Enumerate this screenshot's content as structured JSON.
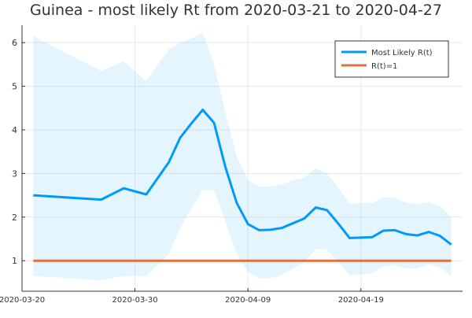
{
  "chart_data": {
    "type": "line",
    "title": "Guinea - most likely Rt from 2020-03-21 to 2020-04-27",
    "xlabel": "",
    "ylabel": "",
    "x_ticks": [
      "2020-03-20",
      "2020-03-30",
      "2020-04-09",
      "2020-04-19"
    ],
    "y_ticks": [
      1,
      2,
      3,
      4,
      5,
      6
    ],
    "xlim": [
      "2020-03-20",
      "2020-04-28"
    ],
    "ylim": [
      0.3,
      6.4
    ],
    "grid": true,
    "legend_position": "top-right",
    "x": [
      "2020-03-21",
      "2020-03-27",
      "2020-03-29",
      "2020-03-31",
      "2020-04-02",
      "2020-04-03",
      "2020-04-04",
      "2020-04-05",
      "2020-04-06",
      "2020-04-07",
      "2020-04-08",
      "2020-04-09",
      "2020-04-10",
      "2020-04-11",
      "2020-04-12",
      "2020-04-13",
      "2020-04-14",
      "2020-04-15",
      "2020-04-16",
      "2020-04-17",
      "2020-04-18",
      "2020-04-19",
      "2020-04-20",
      "2020-04-21",
      "2020-04-22",
      "2020-04-23",
      "2020-04-24",
      "2020-04-25",
      "2020-04-26",
      "2020-04-27"
    ],
    "series": [
      {
        "name": "Most Likely R(t)",
        "color": "#009AFA",
        "values": [
          2.5,
          2.4,
          2.66,
          2.52,
          3.26,
          3.82,
          4.15,
          4.46,
          4.16,
          3.15,
          2.33,
          1.84,
          1.7,
          1.71,
          1.75,
          1.86,
          1.97,
          2.22,
          2.16,
          1.85,
          1.52,
          1.53,
          1.54,
          1.69,
          1.7,
          1.61,
          1.58,
          1.66,
          1.57,
          1.37
        ]
      },
      {
        "name": "R(t)=1",
        "color": "#E26F46",
        "values": [
          1,
          1,
          1,
          1,
          1,
          1,
          1,
          1,
          1,
          1,
          1,
          1,
          1,
          1,
          1,
          1,
          1,
          1,
          1,
          1,
          1,
          1,
          1,
          1,
          1,
          1,
          1,
          1,
          1,
          1
        ]
      }
    ],
    "band": {
      "color": "#009AFA",
      "lower": [
        0.65,
        0.55,
        0.65,
        0.65,
        1.15,
        1.75,
        2.2,
        2.62,
        2.62,
        1.9,
        1.15,
        0.75,
        0.6,
        0.6,
        0.68,
        0.82,
        0.97,
        1.27,
        1.25,
        0.98,
        0.67,
        0.68,
        0.72,
        0.87,
        0.9,
        0.82,
        0.82,
        0.92,
        0.85,
        0.65
      ],
      "upper": [
        6.15,
        5.35,
        5.57,
        5.12,
        5.85,
        6.0,
        6.1,
        6.23,
        5.5,
        4.4,
        3.4,
        2.85,
        2.7,
        2.7,
        2.75,
        2.85,
        2.9,
        3.12,
        3.0,
        2.68,
        2.3,
        2.32,
        2.32,
        2.45,
        2.45,
        2.33,
        2.3,
        2.35,
        2.25,
        2.0
      ]
    }
  }
}
